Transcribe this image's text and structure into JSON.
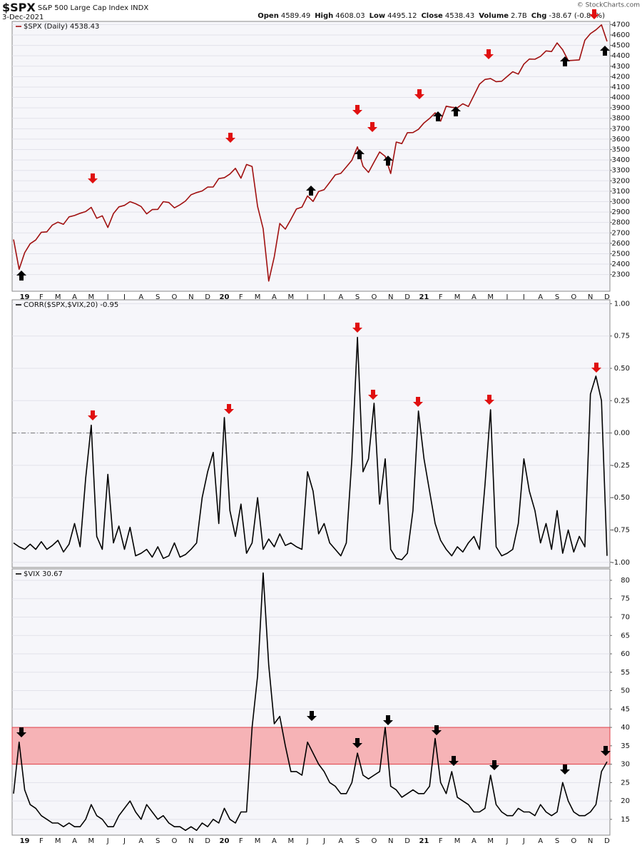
{
  "header": {
    "symbol": "$SPX",
    "name": "S&P 500 Large Cap Index",
    "exchange": "INDX",
    "date": "3-Dec-2021",
    "quote": [
      {
        "label": "Open",
        "value": 4589.49
      },
      {
        "label": "High",
        "value": 4608.03
      },
      {
        "label": "Low",
        "value": 4495.12
      },
      {
        "label": "Close",
        "value": 4538.43
      },
      {
        "label": "Volume",
        "value": "2.7B"
      },
      {
        "label": "Chg",
        "value": "-38.67 (-0.84%)"
      }
    ],
    "credit": "© StockCharts.com"
  },
  "chart_data": [
    {
      "type": "line",
      "grid": true,
      "categories": [
        null,
        null,
        "19",
        null,
        null,
        "F",
        null,
        null,
        "M",
        null,
        null,
        "A",
        null,
        null,
        "M",
        null,
        null,
        "J",
        null,
        null,
        "J",
        null,
        null,
        "A",
        null,
        null,
        "S",
        null,
        null,
        "O",
        null,
        null,
        "N",
        null,
        null,
        "D",
        null,
        null,
        "20",
        null,
        null,
        "F",
        null,
        null,
        "M",
        null,
        null,
        "A",
        null,
        null,
        "M",
        null,
        null,
        "J",
        null,
        null,
        "J",
        null,
        null,
        "A",
        null,
        null,
        "S",
        null,
        null,
        "O",
        null,
        null,
        "N",
        null,
        null,
        "D",
        null,
        null,
        "21",
        null,
        null,
        "F",
        null,
        null,
        "M",
        null,
        null,
        "A",
        null,
        null,
        "M",
        null,
        null,
        "J",
        null,
        null,
        "J",
        null,
        null,
        "A",
        null,
        null,
        "S",
        null,
        null,
        "O",
        null,
        null,
        "N",
        null,
        null,
        "D"
      ],
      "series": [
        {
          "name": "$SPX (Daily) 4538.43",
          "color": "#a01010",
          "values": [
            2637,
            2351,
            2510,
            2596,
            2632,
            2706,
            2710,
            2775,
            2803,
            2783,
            2854,
            2867,
            2888,
            2905,
            2945,
            2840,
            2864,
            2752,
            2885,
            2950,
            2964,
            3000,
            2980,
            2953,
            2883,
            2924,
            2926,
            3000,
            2992,
            2940,
            2970,
            3006,
            3066,
            3087,
            3103,
            3140,
            3141,
            3221,
            3230,
            3265,
            3320,
            3225,
            3357,
            3337,
            2954,
            2741,
            2237,
            2470,
            2790,
            2736,
            2830,
            2930,
            2948,
            3055,
            3002,
            3098,
            3115,
            3185,
            3257,
            3271,
            3333,
            3397,
            3526,
            3340,
            3281,
            3380,
            3477,
            3435,
            3270,
            3572,
            3557,
            3662,
            3663,
            3694,
            3756,
            3799,
            3853,
            3773,
            3916,
            3906,
            3901,
            3939,
            3913,
            4020,
            4128,
            4173,
            4181,
            4152,
            4156,
            4202,
            4247,
            4224,
            4320,
            4369,
            4367,
            4395,
            4447,
            4441,
            4524,
            4458,
            4354,
            4357,
            4361,
            4549,
            4613,
            4649,
            4697,
            4538.43
          ]
        }
      ],
      "ylim": [
        2140,
        4730
      ],
      "yticks": [
        2300,
        2400,
        2500,
        2600,
        2700,
        2800,
        2900,
        3000,
        3100,
        3200,
        3300,
        3400,
        3500,
        3600,
        3700,
        3800,
        3900,
        4000,
        4100,
        4200,
        4300,
        4400,
        4500,
        4600,
        4700
      ]
    },
    {
      "type": "line",
      "grid": true,
      "reference_line": 0,
      "series": [
        {
          "name": "CORR($SPX,$VIX,20) -0.95",
          "color": "#000000",
          "values": [
            -0.85,
            -0.88,
            -0.9,
            -0.86,
            -0.9,
            -0.84,
            -0.9,
            -0.87,
            -0.83,
            -0.92,
            -0.86,
            -0.7,
            -0.88,
            -0.35,
            0.06,
            -0.8,
            -0.9,
            -0.32,
            -0.85,
            -0.72,
            -0.9,
            -0.73,
            -0.95,
            -0.93,
            -0.9,
            -0.96,
            -0.88,
            -0.97,
            -0.95,
            -0.85,
            -0.96,
            -0.94,
            -0.9,
            -0.85,
            -0.5,
            -0.3,
            -0.15,
            -0.7,
            0.12,
            -0.6,
            -0.8,
            -0.55,
            -0.93,
            -0.85,
            -0.5,
            -0.9,
            -0.82,
            -0.88,
            -0.78,
            -0.87,
            -0.85,
            -0.88,
            -0.9,
            -0.3,
            -0.45,
            -0.78,
            -0.7,
            -0.85,
            -0.9,
            -0.95,
            -0.85,
            -0.2,
            0.74,
            -0.3,
            -0.2,
            0.23,
            -0.55,
            -0.2,
            -0.9,
            -0.97,
            -0.98,
            -0.93,
            -0.6,
            0.17,
            -0.2,
            -0.45,
            -0.7,
            -0.83,
            -0.9,
            -0.95,
            -0.88,
            -0.92,
            -0.85,
            -0.8,
            -0.9,
            -0.4,
            0.18,
            -0.88,
            -0.95,
            -0.93,
            -0.9,
            -0.7,
            -0.2,
            -0.45,
            -0.6,
            -0.85,
            -0.7,
            -0.9,
            -0.6,
            -0.93,
            -0.75,
            -0.92,
            -0.8,
            -0.88,
            0.3,
            0.44,
            0.25,
            -0.95
          ]
        }
      ],
      "ylim": [
        -1.04,
        1.03
      ],
      "yticks": [
        {
          "value": 1,
          "label": "1.00"
        },
        {
          "value": 0.75,
          "label": "0.75"
        },
        {
          "value": 0.5,
          "label": "0.50"
        },
        {
          "value": 0.25,
          "label": "0.25"
        },
        {
          "value": 0,
          "label": "0.00"
        },
        {
          "value": -0.25,
          "label": "-0.25"
        },
        {
          "value": -0.5,
          "label": "-0.50"
        },
        {
          "value": -0.75,
          "label": "-0.75"
        },
        {
          "value": -1,
          "label": "-1.00"
        }
      ]
    },
    {
      "type": "line",
      "grid": true,
      "band": [
        30,
        40
      ],
      "band_color": "#f6b3b6",
      "categories": [
        null,
        null,
        "19",
        null,
        null,
        "F",
        null,
        null,
        "M",
        null,
        null,
        "A",
        null,
        null,
        "M",
        null,
        null,
        "J",
        null,
        null,
        "J",
        null,
        null,
        "A",
        null,
        null,
        "S",
        null,
        null,
        "O",
        null,
        null,
        "N",
        null,
        null,
        "D",
        null,
        null,
        "20",
        null,
        null,
        "F",
        null,
        null,
        "M",
        null,
        null,
        "A",
        null,
        null,
        "M",
        null,
        null,
        "J",
        null,
        null,
        "J",
        null,
        null,
        "A",
        null,
        null,
        "S",
        null,
        null,
        "O",
        null,
        null,
        "N",
        null,
        null,
        "D",
        null,
        null,
        "21",
        null,
        null,
        "F",
        null,
        null,
        "M",
        null,
        null,
        "A",
        null,
        null,
        "M",
        null,
        null,
        "J",
        null,
        null,
        "J",
        null,
        null,
        "A",
        null,
        null,
        "S",
        null,
        null,
        "O",
        null,
        null,
        "N",
        null,
        null,
        "D"
      ],
      "series": [
        {
          "name": "$VIX 30.67",
          "color": "#000000",
          "values": [
            22,
            36,
            23,
            19,
            18,
            16,
            15,
            14,
            14,
            13,
            14,
            13,
            13,
            15,
            19,
            16,
            15,
            13,
            13,
            16,
            18,
            20,
            17,
            15,
            19,
            17,
            15,
            16,
            14,
            13,
            13,
            12,
            13,
            12,
            14,
            13,
            15,
            14,
            18,
            15,
            14,
            17,
            17,
            40,
            54,
            82,
            57,
            41,
            43,
            35,
            28,
            28,
            27,
            36,
            33,
            30,
            28,
            25,
            24,
            22,
            22,
            25,
            33,
            27,
            26,
            27,
            28,
            40,
            24,
            23,
            21,
            22,
            23,
            22,
            22,
            24,
            37,
            25,
            22,
            28,
            21,
            20,
            19,
            17,
            17,
            18,
            27,
            19,
            17,
            16,
            16,
            18,
            17,
            17,
            16,
            19,
            17,
            16,
            17,
            25,
            20,
            17,
            16,
            16,
            17,
            19,
            28,
            30.67
          ]
        }
      ],
      "ylim": [
        10.7,
        83.1
      ],
      "yticks": [
        15,
        20,
        25,
        30,
        35,
        40,
        45,
        50,
        55,
        60,
        65,
        70,
        75,
        80
      ]
    }
  ]
}
